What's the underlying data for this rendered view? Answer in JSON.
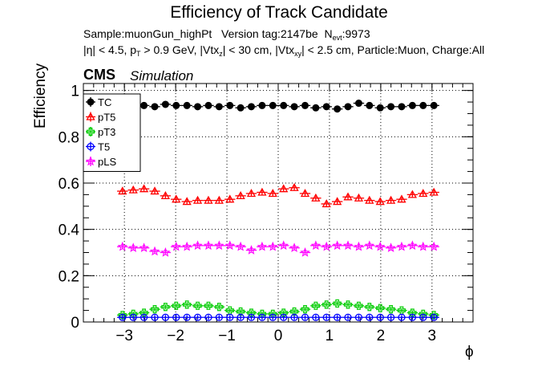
{
  "title": "Efficiency of Track Candidate",
  "info": {
    "sample": "Sample:muonGun_highPt",
    "version": "Version tag:2147be",
    "nevt_label": "N",
    "nevt_sub": "evt",
    "nevt_value": ":9973",
    "eta_cut": "|η| < 4.5, p",
    "pt_sub": "T",
    "pt_cut": " > 0.9 GeV, |Vtx",
    "vtxz_sub": "z",
    "vtxz_cut": "| < 30 cm, |Vtx",
    "vtxxy_sub": "xy",
    "rest": "| < 2.5 cm, Particle:Muon, Charge:All"
  },
  "cms_label": "CMS",
  "simulation_label": "Simulation",
  "chart_data": {
    "type": "scatter",
    "title": "Efficiency of Track Candidate",
    "xlabel": "ϕ",
    "ylabel": "Efficiency",
    "xlim": [
      -3.8,
      3.8
    ],
    "ylim": [
      0,
      1.03
    ],
    "xticks": [
      -3,
      -2,
      -1,
      0,
      1,
      2,
      3
    ],
    "xticklabels": [
      "−3",
      "−2",
      "−1",
      "0",
      "1",
      "2",
      "3"
    ],
    "yticks": [
      0,
      0.2,
      0.4,
      0.6,
      0.8,
      1
    ],
    "yticklabels": [
      "0",
      "0.2",
      "0.4",
      "0.6",
      "0.8",
      "1"
    ],
    "grid": true,
    "legend_position": "top-left",
    "bin_width": 0.2094,
    "x": [
      -3.037,
      -2.827,
      -2.618,
      -2.408,
      -2.199,
      -1.99,
      -1.78,
      -1.571,
      -1.361,
      -1.152,
      -0.942,
      -0.733,
      -0.524,
      -0.314,
      -0.105,
      0.105,
      0.314,
      0.524,
      0.733,
      0.942,
      1.152,
      1.361,
      1.571,
      1.78,
      1.99,
      2.199,
      2.408,
      2.618,
      2.827,
      3.037
    ],
    "series": [
      {
        "name": "TC",
        "color": "#000000",
        "marker": "filled-circle",
        "values": [
          0.93,
          0.925,
          0.935,
          0.93,
          0.94,
          0.935,
          0.935,
          0.93,
          0.935,
          0.93,
          0.935,
          0.925,
          0.93,
          0.935,
          0.935,
          0.935,
          0.93,
          0.935,
          0.925,
          0.93,
          0.92,
          0.93,
          0.945,
          0.935,
          0.925,
          0.93,
          0.93,
          0.935,
          0.935,
          0.935
        ]
      },
      {
        "name": "pT5",
        "color": "#ff0000",
        "marker": "open-triangle",
        "values": [
          0.565,
          0.57,
          0.575,
          0.565,
          0.545,
          0.53,
          0.52,
          0.525,
          0.525,
          0.525,
          0.53,
          0.545,
          0.555,
          0.56,
          0.555,
          0.575,
          0.58,
          0.555,
          0.535,
          0.51,
          0.52,
          0.54,
          0.535,
          0.525,
          0.52,
          0.525,
          0.53,
          0.55,
          0.555,
          0.56
        ]
      },
      {
        "name": "pT3",
        "color": "#00cc00",
        "marker": "open-cross",
        "values": [
          0.03,
          0.035,
          0.04,
          0.055,
          0.065,
          0.07,
          0.075,
          0.07,
          0.07,
          0.065,
          0.05,
          0.045,
          0.04,
          0.035,
          0.035,
          0.04,
          0.045,
          0.055,
          0.07,
          0.075,
          0.08,
          0.075,
          0.07,
          0.065,
          0.06,
          0.055,
          0.05,
          0.04,
          0.035,
          0.03
        ]
      },
      {
        "name": "T5",
        "color": "#0000ff",
        "marker": "open-circle",
        "values": [
          0.02,
          0.02,
          0.02,
          0.02,
          0.02,
          0.02,
          0.02,
          0.02,
          0.02,
          0.02,
          0.02,
          0.02,
          0.02,
          0.02,
          0.02,
          0.02,
          0.02,
          0.02,
          0.02,
          0.02,
          0.02,
          0.02,
          0.02,
          0.02,
          0.02,
          0.02,
          0.02,
          0.02,
          0.02,
          0.02
        ]
      },
      {
        "name": "pLS",
        "color": "#ff00ff",
        "marker": "open-star",
        "values": [
          0.325,
          0.32,
          0.32,
          0.305,
          0.3,
          0.325,
          0.325,
          0.33,
          0.33,
          0.33,
          0.33,
          0.325,
          0.31,
          0.325,
          0.325,
          0.33,
          0.32,
          0.3,
          0.33,
          0.325,
          0.33,
          0.33,
          0.325,
          0.33,
          0.325,
          0.32,
          0.325,
          0.33,
          0.325,
          0.325
        ]
      }
    ]
  }
}
